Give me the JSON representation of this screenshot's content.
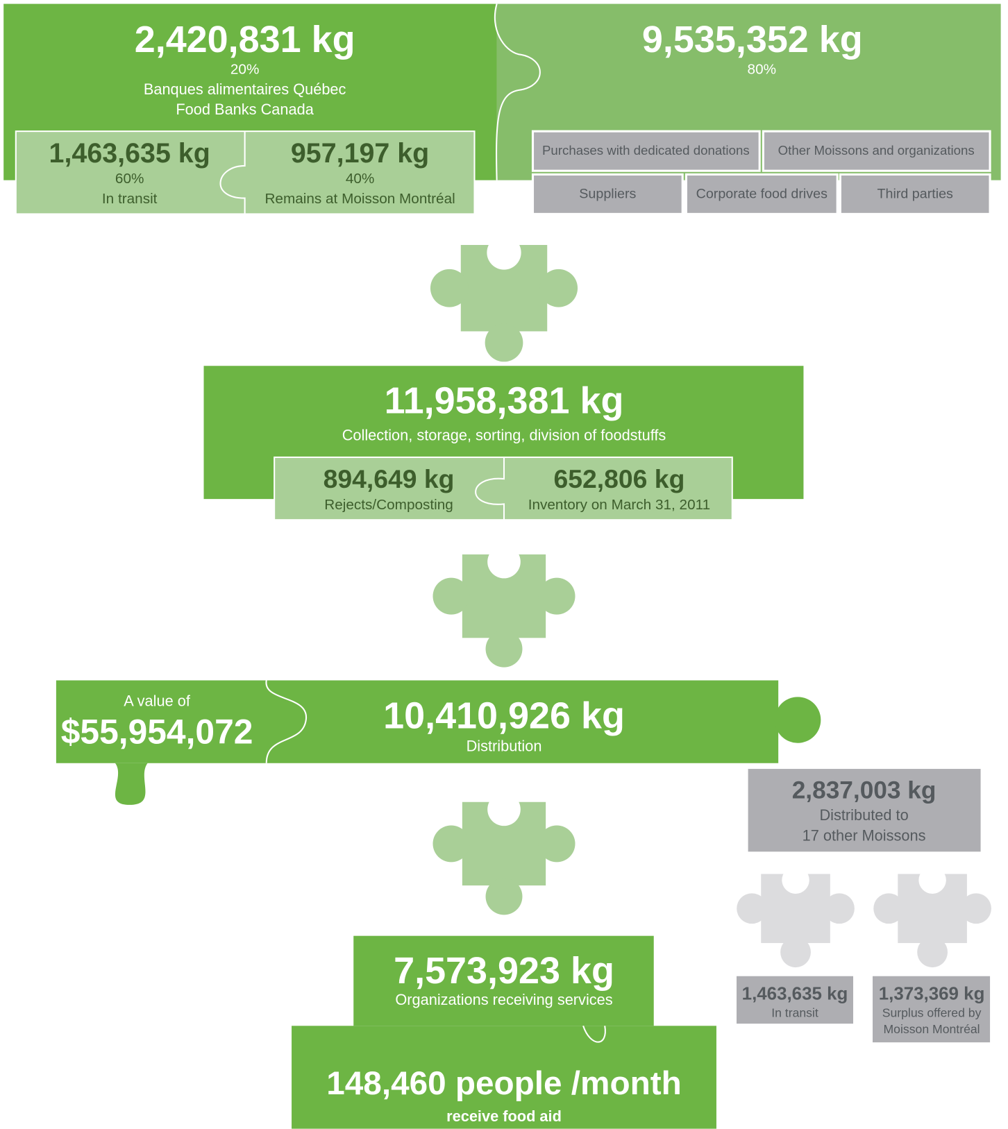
{
  "top_left": {
    "amount": "2,420,831 kg",
    "percent": "20%",
    "source": [
      "Banques alimentaires Québec",
      "Food Banks Canada"
    ],
    "parts": [
      {
        "amount": "1,463,635 kg",
        "percent": "60%",
        "label": "In transit"
      },
      {
        "amount": "957,197 kg",
        "percent": "40%",
        "label": "Remains at Moisson Montréal"
      }
    ]
  },
  "top_right": {
    "amount": "9,535,352 kg",
    "percent": "80%",
    "sources": [
      "Purchases with dedicated donations",
      "Other Moissons and organizations",
      "Suppliers",
      "Corporate food drives",
      "Third parties"
    ]
  },
  "collection": {
    "amount": "11,958,381 kg",
    "label": "Collection, storage, sorting, division of foodstuffs",
    "parts": [
      {
        "amount": "894,649 kg",
        "label": "Rejects/Composting"
      },
      {
        "amount": "652,806 kg",
        "label": "Inventory on March 31, 2011"
      }
    ]
  },
  "distribution": {
    "value_label": "A value of",
    "value": "$55,954,072",
    "amount": "10,410,926 kg",
    "label": "Distribution"
  },
  "moissons": {
    "amount": "2,837,003 kg",
    "label": [
      "Distributed to",
      "17 other Moissons"
    ],
    "parts": [
      {
        "amount": "1,463,635 kg",
        "label": [
          "In transit"
        ]
      },
      {
        "amount": "1,373,369 kg",
        "label": [
          "Surplus offered by",
          "Moisson Montréal"
        ]
      }
    ]
  },
  "organizations": {
    "amount": "7,573,923 kg",
    "label": "Organizations receiving services"
  },
  "people": {
    "amount": "148,460 people /month",
    "label": "receive food aid"
  }
}
